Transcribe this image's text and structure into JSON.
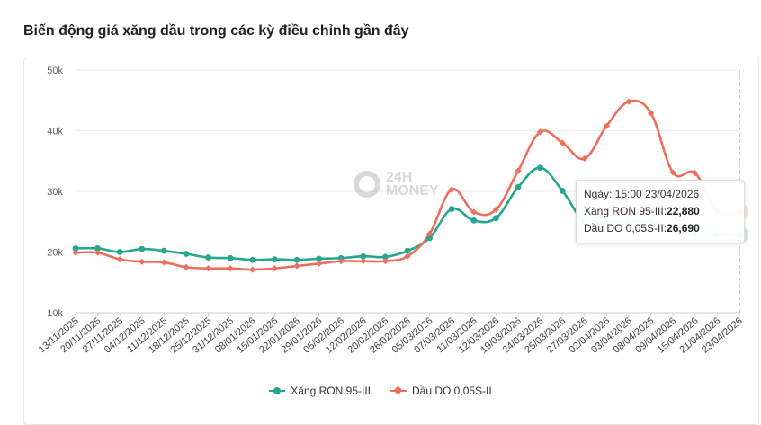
{
  "title": "Biến động giá xăng dầu trong các kỳ điều chỉnh gần đây",
  "chart_data": {
    "type": "line",
    "categories": [
      "13/11/2025",
      "20/11/2025",
      "27/11/2025",
      "04/12/2025",
      "11/12/2025",
      "18/12/2025",
      "25/12/2025",
      "31/12/2025",
      "08/01/2026",
      "15/01/2026",
      "22/01/2026",
      "29/01/2026",
      "05/02/2026",
      "12/02/2026",
      "20/02/2026",
      "26/02/2026",
      "05/03/2026",
      "07/03/2026",
      "11/03/2026",
      "12/03/2026",
      "19/03/2026",
      "24/03/2026",
      "25/03/2026",
      "27/03/2026",
      "02/04/2026",
      "03/04/2026",
      "08/04/2026",
      "09/04/2026",
      "15/04/2026",
      "21/04/2026",
      "23/04/2026"
    ],
    "series": [
      {
        "name": "Xăng RON 95-III",
        "color": "#26a68f",
        "marker": "circle",
        "values": [
          20600,
          20600,
          20000,
          20500,
          20200,
          19700,
          19100,
          19000,
          18700,
          18800,
          18700,
          18900,
          19000,
          19300,
          19200,
          20200,
          22300,
          27100,
          25200,
          25600,
          30700,
          33900,
          30100,
          25000,
          25000,
          25000,
          25000,
          23800,
          22900,
          22880,
          22880
        ]
      },
      {
        "name": "Dầu DO 0,05S-II",
        "color": "#ee6f5a",
        "marker": "diamond",
        "values": [
          19900,
          19900,
          18800,
          18400,
          18300,
          17500,
          17300,
          17300,
          17100,
          17300,
          17700,
          18100,
          18500,
          18500,
          18500,
          19300,
          23000,
          30300,
          26600,
          27000,
          33400,
          39800,
          38000,
          35400,
          40800,
          44800,
          42900,
          33100,
          33000,
          26690,
          26690
        ]
      }
    ],
    "y_ticks": [
      "10k",
      "20k",
      "30k",
      "40k",
      "50k"
    ],
    "ylim": [
      10000,
      50000
    ],
    "legend_position": "bottom"
  },
  "tooltip": {
    "date_label": "Ngày:",
    "date_value": "15:00 23/04/2026",
    "line1_label": "Xăng RON 95-III:",
    "line1_value": "22,880",
    "line2_label": "Dầu DO 0,05S-II:",
    "line2_value": "26,690"
  },
  "watermark": {
    "line1": "24H",
    "line2": "MONEY"
  }
}
